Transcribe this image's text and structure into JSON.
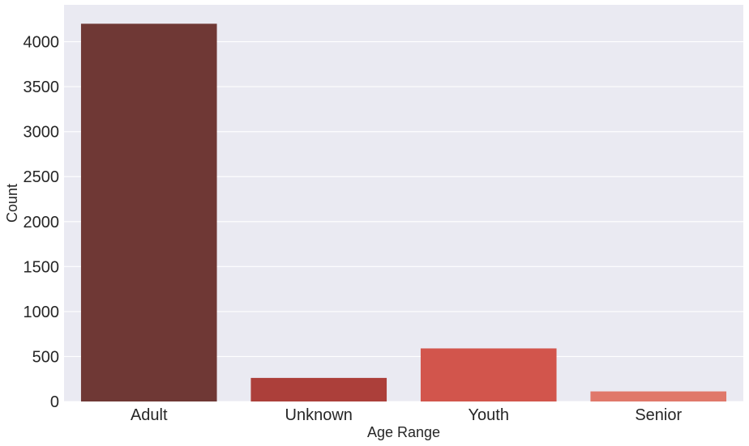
{
  "chart_data": {
    "type": "bar",
    "categories": [
      "Adult",
      "Unknown",
      "Youth",
      "Senior"
    ],
    "values": [
      4200,
      262,
      590,
      112
    ],
    "colors": [
      "#6f3835",
      "#ac3f3a",
      "#d2554c",
      "#e0786a"
    ],
    "xlabel": "Age Range",
    "ylabel": "Count",
    "ylim": [
      0,
      4410
    ],
    "yticks": [
      0,
      500,
      1000,
      1500,
      2000,
      2500,
      3000,
      3500,
      4000
    ],
    "grid": true,
    "background": "#eaeaf2"
  }
}
